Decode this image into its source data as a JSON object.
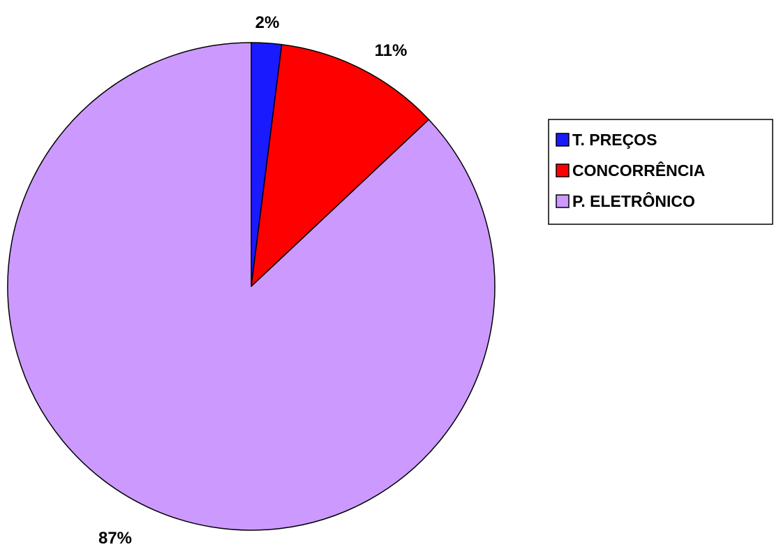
{
  "chart_data": {
    "type": "pie",
    "title": "",
    "start_angle": "12 o'clock",
    "direction": "clockwise",
    "legend_position": "right",
    "slices": [
      {
        "name": "T. PREÇOS",
        "value": 2,
        "label": "2%",
        "color": "#1a1aff"
      },
      {
        "name": "CONCORRÊNCIA",
        "value": 11,
        "label": "11%",
        "color": "#ff0000"
      },
      {
        "name": "P. ELETRÔNICO",
        "value": 87,
        "label": "87%",
        "color": "#cc99ff"
      }
    ]
  }
}
